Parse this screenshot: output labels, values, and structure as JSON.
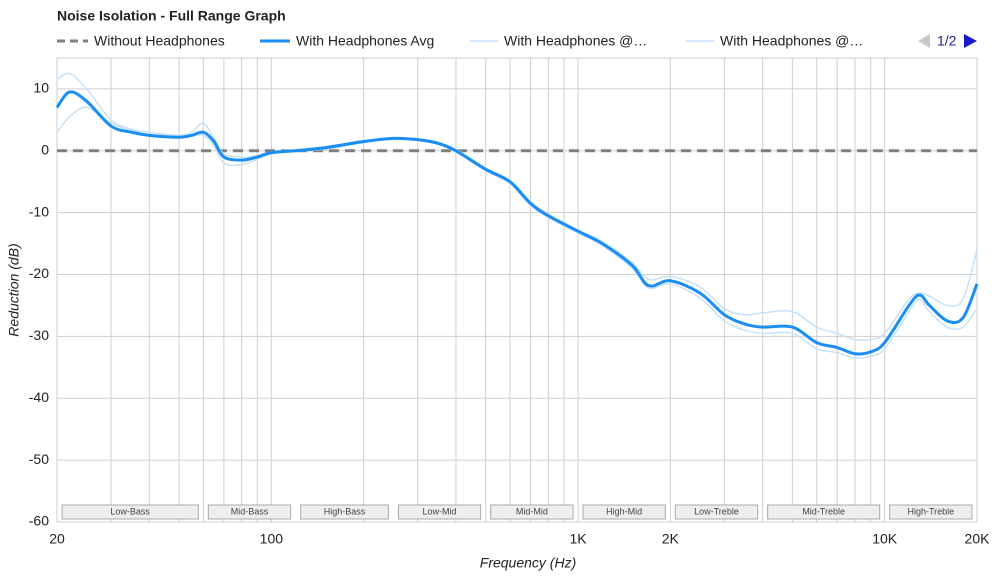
{
  "chart_data": {
    "type": "line",
    "title": "Noise Isolation - Full Range Graph",
    "x_label": "Frequency (Hz)",
    "y_label": "Reduction (dB)",
    "pager": "1/2",
    "xscale": "log",
    "xlim": [
      20,
      20000
    ],
    "ylim": [
      -60,
      15
    ],
    "xticks": [
      20,
      100,
      {
        "value": 1000,
        "label": "1K"
      },
      {
        "value": 2000,
        "label": "2K"
      },
      {
        "value": 10000,
        "label": "10K"
      },
      {
        "value": 20000,
        "label": "20K"
      }
    ],
    "x_minor_grid": [
      30,
      40,
      50,
      60,
      70,
      80,
      90,
      200,
      300,
      400,
      500,
      600,
      700,
      800,
      900,
      3000,
      4000,
      5000,
      6000,
      7000,
      8000,
      9000
    ],
    "yticks": [
      -60,
      -50,
      -40,
      -30,
      -20,
      -10,
      0,
      10
    ],
    "grid": true,
    "bands": [
      {
        "label": "Low-Bass",
        "range": [
          20,
          60
        ]
      },
      {
        "label": "Mid-Bass",
        "range": [
          60,
          120
        ]
      },
      {
        "label": "High-Bass",
        "range": [
          120,
          250
        ]
      },
      {
        "label": "Low-Mid",
        "range": [
          250,
          500
        ]
      },
      {
        "label": "Mid-Mid",
        "range": [
          500,
          1000
        ]
      },
      {
        "label": "High-Mid",
        "range": [
          1000,
          2000
        ]
      },
      {
        "label": "Low-Treble",
        "range": [
          2000,
          4000
        ]
      },
      {
        "label": "Mid-Treble",
        "range": [
          4000,
          10000
        ]
      },
      {
        "label": "High-Treble",
        "range": [
          10000,
          20000
        ]
      }
    ],
    "x": [
      20,
      22,
      25,
      30,
      35,
      40,
      50,
      55,
      60,
      65,
      70,
      80,
      90,
      100,
      120,
      150,
      200,
      250,
      300,
      350,
      400,
      500,
      600,
      700,
      800,
      1000,
      1200,
      1500,
      1700,
      2000,
      2500,
      3000,
      3500,
      4000,
      5000,
      6000,
      7000,
      8000,
      9000,
      10000,
      12000,
      13000,
      14000,
      16000,
      18000,
      20000
    ],
    "series": [
      {
        "name": "Without Headphones",
        "color": "#808080",
        "dashed": true,
        "width": 3,
        "values": [
          0,
          0,
          0,
          0,
          0,
          0,
          0,
          0,
          0,
          0,
          0,
          0,
          0,
          0,
          0,
          0,
          0,
          0,
          0,
          0,
          0,
          0,
          0,
          0,
          0,
          0,
          0,
          0,
          0,
          0,
          0,
          0,
          0,
          0,
          0,
          0,
          0,
          0,
          0,
          0,
          0,
          0,
          0,
          0,
          0,
          0
        ]
      },
      {
        "name": "With Headphones @…",
        "color": "#c6e2fa",
        "width": 1.5,
        "values": [
          11.5,
          12.5,
          10,
          5,
          3.5,
          3,
          2.5,
          3,
          4.5,
          2,
          -0.5,
          -1,
          -0.8,
          -0.2,
          0.2,
          0.7,
          1.6,
          2.1,
          1.9,
          1.3,
          0.2,
          -2.8,
          -4.8,
          -8.2,
          -10.2,
          -12.8,
          -14.7,
          -18,
          -20.8,
          -20.3,
          -22,
          -25.5,
          -26.5,
          -26.2,
          -26,
          -28.5,
          -29.5,
          -30.5,
          -30.5,
          -29.5,
          -24,
          -23,
          -23.5,
          -25,
          -24,
          -16
        ]
      },
      {
        "name": "With Headphones @…",
        "color": "#c6e2fa",
        "width": 1.5,
        "values": [
          3,
          5.5,
          7,
          4.5,
          3.2,
          2.6,
          2.3,
          2.4,
          2.5,
          0.8,
          -2,
          -2.2,
          -1.4,
          -0.5,
          -0.1,
          0.3,
          1.3,
          1.9,
          1.7,
          1.1,
          -0.2,
          -3.2,
          -5.3,
          -8.8,
          -10.8,
          -13.3,
          -15.3,
          -19,
          -22.2,
          -21.5,
          -23.8,
          -27.5,
          -29,
          -29.5,
          -29.5,
          -32,
          -32.6,
          -33.5,
          -33.2,
          -32,
          -26,
          -24,
          -26,
          -28.5,
          -28.5,
          -25.5
        ]
      },
      {
        "name": "With Headphones Avg",
        "color": "#1b8ef5",
        "width": 3,
        "values": [
          7,
          9.5,
          8,
          4,
          3,
          2.5,
          2.2,
          2.5,
          3,
          1.5,
          -1,
          -1.5,
          -1,
          -0.3,
          0,
          0.5,
          1.5,
          2,
          1.8,
          1.2,
          0,
          -3,
          -5,
          -8.5,
          -10.5,
          -13,
          -15,
          -18.5,
          -21.8,
          -21,
          -23,
          -26.5,
          -28,
          -28.5,
          -28.5,
          -31,
          -31.8,
          -32.8,
          -32.5,
          -31,
          -25,
          -23.3,
          -25,
          -27.5,
          -27,
          -21.5
        ]
      }
    ],
    "legend_order": [
      0,
      3,
      1,
      2
    ]
  }
}
